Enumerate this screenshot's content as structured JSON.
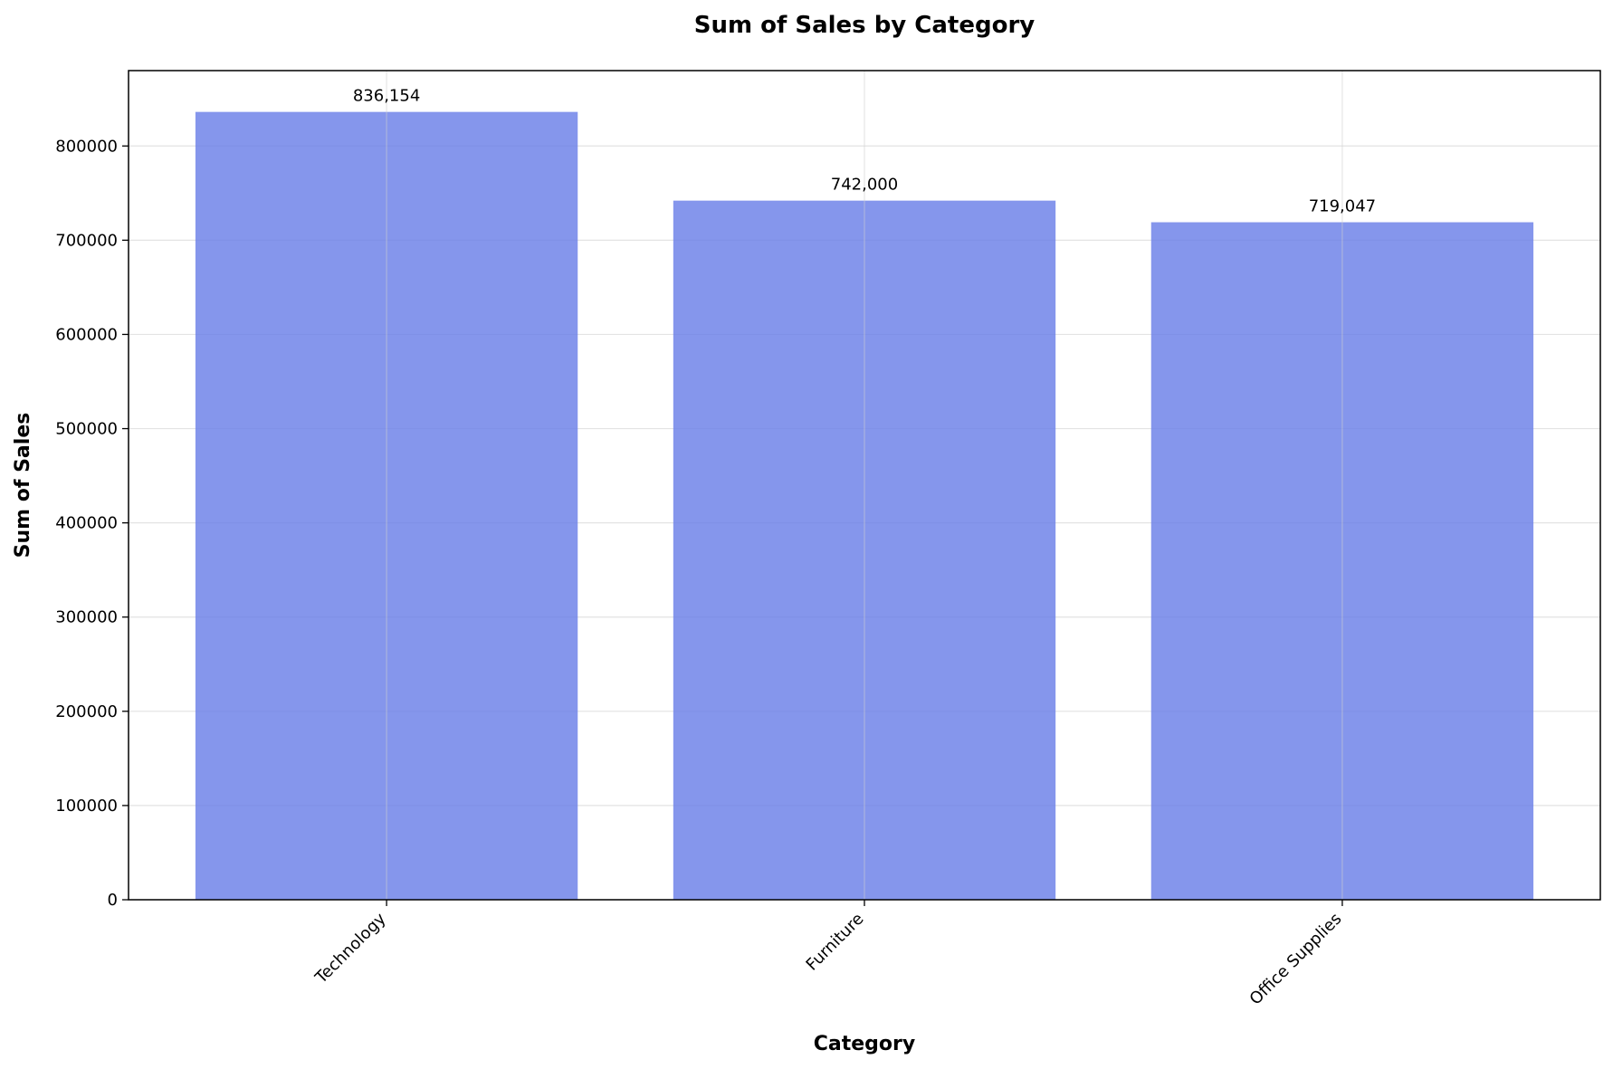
{
  "chart_data": {
    "type": "bar",
    "title": "Sum of Sales by Category",
    "xlabel": "Category",
    "ylabel": "Sum of Sales",
    "categories": [
      "Technology",
      "Furniture",
      "Office Supplies"
    ],
    "values": [
      836154,
      742000,
      719047
    ],
    "value_labels": [
      "836,154",
      "742,000",
      "719,047"
    ],
    "ylim": [
      0,
      880000
    ],
    "yticks": [
      0,
      100000,
      200000,
      300000,
      400000,
      500000,
      600000,
      700000,
      800000
    ],
    "ytick_labels": [
      "0",
      "100000",
      "200000",
      "300000",
      "400000",
      "500000",
      "600000",
      "700000",
      "800000"
    ],
    "grid": true,
    "bar_color": "#6a7fe8",
    "bar_opacity": 0.82
  }
}
